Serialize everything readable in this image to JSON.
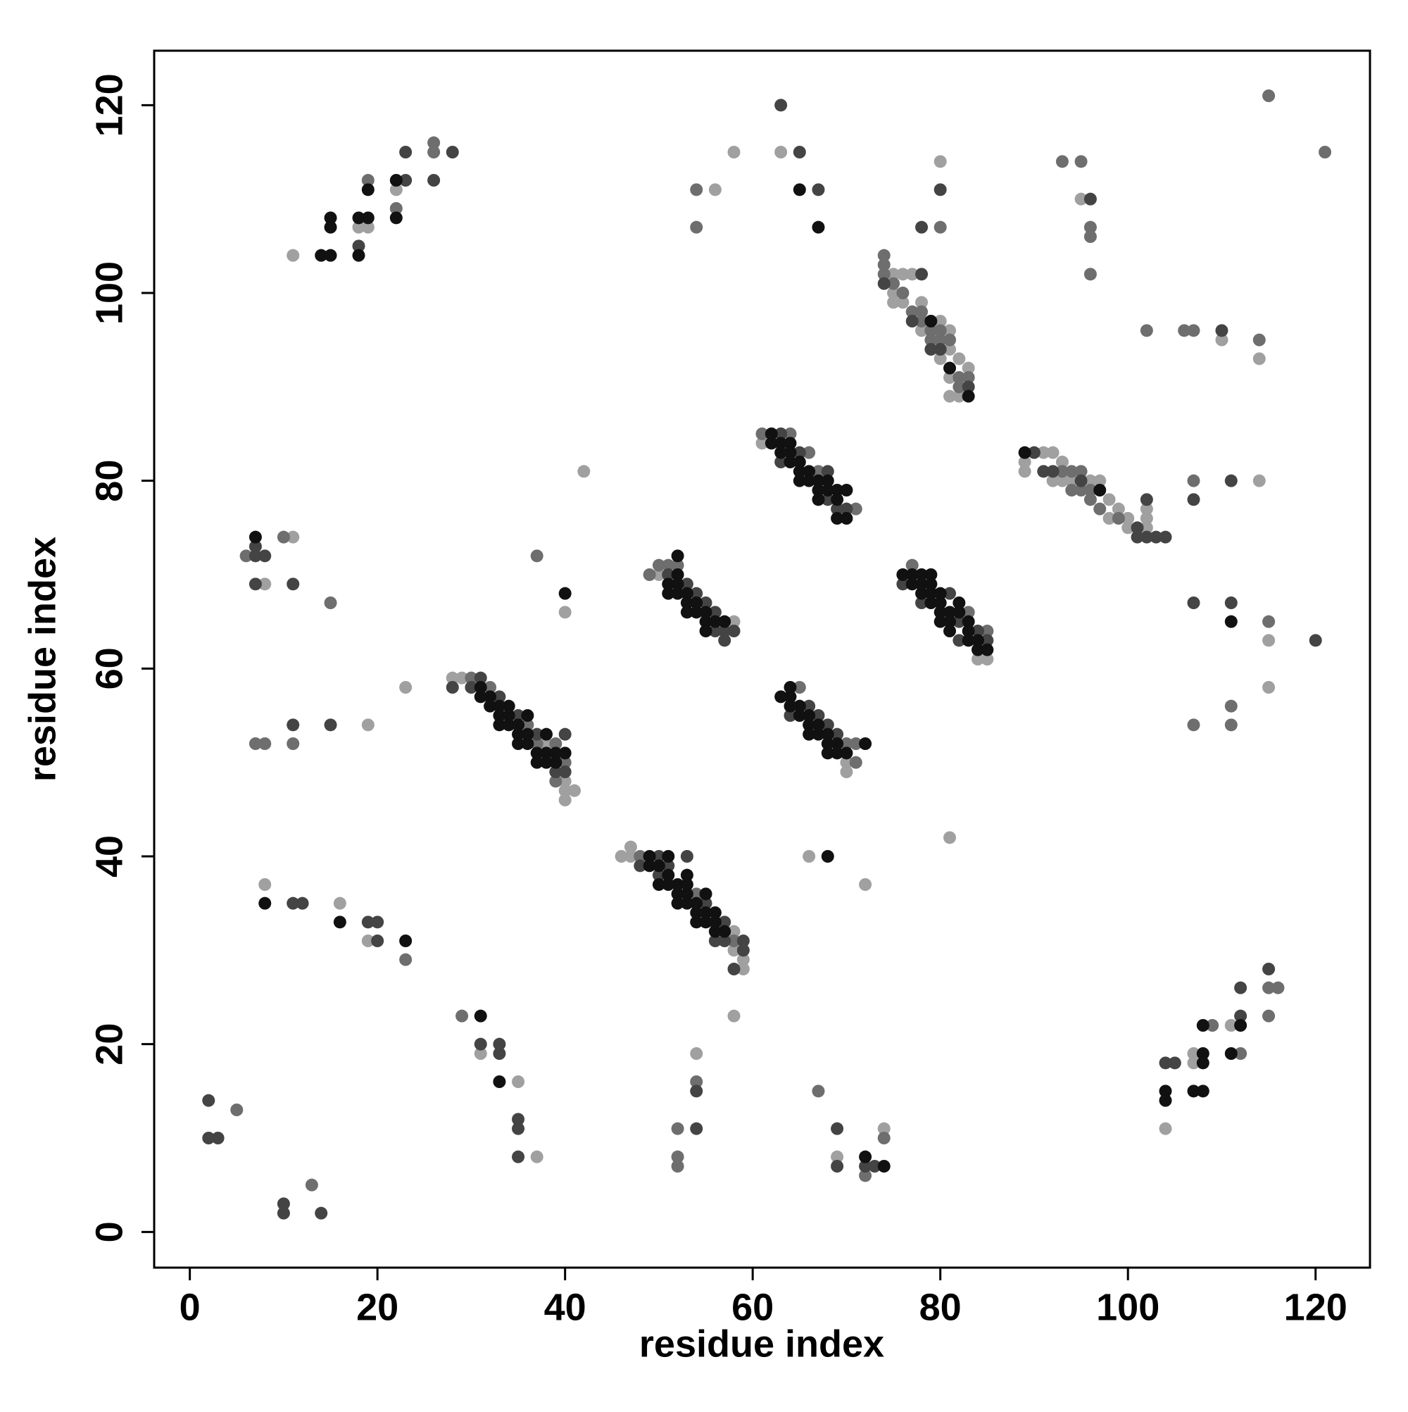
{
  "chart_data": {
    "type": "scatter",
    "xlabel": "residue index",
    "ylabel": "residue index",
    "xlim": [
      -3.8,
      125.8
    ],
    "ylim": [
      -3.8,
      125.8
    ],
    "xticks": [
      0,
      20,
      40,
      60,
      80,
      100,
      120
    ],
    "yticks": [
      0,
      20,
      40,
      60,
      80,
      100,
      120
    ],
    "grid": false,
    "series": [
      {
        "color": "#a0a0a0",
        "x": [
          8,
          16,
          19,
          19,
          23,
          8,
          11,
          11,
          18,
          19,
          22,
          28,
          29,
          38,
          40,
          40,
          40,
          41,
          40,
          42,
          46,
          47,
          47,
          58,
          58,
          59,
          59,
          58,
          50,
          58,
          61,
          70,
          70,
          66,
          72,
          84,
          85,
          81,
          75,
          75,
          75,
          76,
          76,
          77,
          78,
          78,
          80,
          80,
          81,
          81,
          81,
          81,
          82,
          82,
          83,
          89,
          89,
          91,
          92,
          92,
          93,
          93,
          94,
          96,
          97,
          98,
          98,
          99,
          100,
          100,
          102,
          102,
          102,
          56,
          58,
          63,
          80,
          95,
          110,
          114,
          114,
          115,
          115,
          104,
          107,
          107,
          111,
          31,
          35,
          37,
          54,
          69,
          74
        ],
        "values": [
          37,
          35,
          31,
          54,
          58,
          69,
          74,
          104,
          107,
          107,
          111,
          59,
          59,
          52,
          48,
          47,
          46,
          47,
          66,
          81,
          40,
          41,
          40,
          32,
          30,
          29,
          28,
          23,
          70,
          65,
          84,
          50,
          49,
          40,
          37,
          61,
          61,
          42,
          102,
          100,
          99,
          102,
          99,
          102,
          99,
          96,
          97,
          93,
          96,
          94,
          91,
          89,
          93,
          89,
          92,
          82,
          81,
          83,
          83,
          80,
          82,
          80,
          80,
          80,
          80,
          78,
          76,
          77,
          76,
          75,
          77,
          76,
          75,
          111,
          115,
          115,
          114,
          110,
          95,
          93,
          80,
          63,
          58,
          11,
          19,
          18,
          22,
          19,
          16,
          8,
          19,
          8,
          11
        ]
      },
      {
        "color": "#6e6e6e",
        "x": [
          5,
          13,
          23,
          7,
          8,
          11,
          6,
          10,
          15,
          19,
          22,
          26,
          26,
          30,
          32,
          36,
          37,
          39,
          39,
          40,
          37,
          48,
          54,
          58,
          49,
          50,
          51,
          52,
          61,
          64,
          66,
          67,
          71,
          65,
          70,
          71,
          71,
          77,
          83,
          85,
          74,
          74,
          74,
          75,
          76,
          77,
          78,
          78,
          79,
          79,
          80,
          80,
          81,
          82,
          82,
          83,
          93,
          94,
          94,
          95,
          95,
          96,
          96,
          97,
          99,
          54,
          54,
          80,
          93,
          95,
          96,
          96,
          96,
          102,
          106,
          107,
          114,
          115,
          121,
          107,
          115,
          107,
          111,
          111,
          109,
          112,
          115,
          116,
          115,
          29,
          52,
          52,
          52,
          54,
          67,
          72,
          74
        ],
        "values": [
          13,
          5,
          29,
          52,
          52,
          52,
          72,
          74,
          67,
          112,
          109,
          116,
          115,
          59,
          58,
          54,
          52,
          52,
          48,
          50,
          72,
          40,
          36,
          31,
          70,
          71,
          71,
          71,
          85,
          85,
          83,
          81,
          77,
          58,
          52,
          52,
          50,
          71,
          66,
          64,
          104,
          103,
          102,
          101,
          100,
          98,
          98,
          97,
          96,
          95,
          96,
          95,
          95,
          91,
          90,
          91,
          81,
          81,
          79,
          81,
          79,
          79,
          78,
          77,
          76,
          111,
          107,
          107,
          114,
          114,
          107,
          106,
          102,
          96,
          96,
          96,
          95,
          121,
          115,
          80,
          65,
          54,
          56,
          54,
          22,
          19,
          26,
          26,
          23,
          23,
          11,
          8,
          7,
          16,
          15,
          6,
          10
        ]
      },
      {
        "color": "#444444",
        "x": [
          2,
          2,
          3,
          10,
          10,
          14,
          11,
          12,
          19,
          20,
          20,
          11,
          15,
          7,
          7,
          8,
          7,
          11,
          18,
          23,
          23,
          26,
          28,
          28,
          30,
          31,
          33,
          35,
          37,
          39,
          40,
          40,
          48,
          50,
          50,
          51,
          53,
          55,
          56,
          57,
          57,
          58,
          59,
          59,
          51,
          53,
          54,
          55,
          56,
          56,
          57,
          57,
          58,
          63,
          63,
          65,
          68,
          68,
          69,
          70,
          64,
          66,
          67,
          68,
          69,
          76,
          78,
          81,
          82,
          82,
          84,
          85,
          74,
          77,
          78,
          79,
          80,
          83,
          90,
          91,
          92,
          95,
          101,
          101,
          102,
          102,
          103,
          104,
          63,
          65,
          67,
          78,
          80,
          96,
          110,
          107,
          111,
          107,
          111,
          120,
          104,
          105,
          112,
          112,
          115,
          31,
          33,
          33,
          35,
          35,
          35,
          54,
          54,
          69,
          69,
          72,
          73
        ],
        "values": [
          14,
          10,
          10,
          3,
          2,
          2,
          35,
          35,
          33,
          33,
          31,
          54,
          54,
          73,
          72,
          72,
          69,
          69,
          105,
          112,
          115,
          112,
          115,
          58,
          58,
          59,
          57,
          55,
          53,
          49,
          53,
          49,
          39,
          40,
          38,
          39,
          40,
          35,
          31,
          33,
          31,
          28,
          31,
          30,
          70,
          69,
          68,
          67,
          66,
          64,
          64,
          63,
          64,
          85,
          82,
          83,
          81,
          78,
          77,
          77,
          55,
          56,
          55,
          54,
          53,
          69,
          67,
          68,
          65,
          63,
          64,
          63,
          101,
          97,
          102,
          94,
          94,
          90,
          83,
          81,
          81,
          80,
          75,
          74,
          78,
          74,
          74,
          74,
          120,
          115,
          111,
          107,
          111,
          110,
          96,
          78,
          80,
          67,
          67,
          63,
          18,
          18,
          26,
          23,
          28,
          20,
          20,
          19,
          12,
          11,
          8,
          15,
          11,
          11,
          7,
          7,
          7
        ]
      },
      {
        "color": "#111111",
        "x": [
          8,
          16,
          23,
          7,
          14,
          15,
          15,
          15,
          18,
          18,
          19,
          19,
          22,
          22,
          31,
          31,
          32,
          32,
          33,
          33,
          33,
          34,
          34,
          34,
          35,
          35,
          35,
          36,
          36,
          36,
          37,
          37,
          38,
          38,
          38,
          39,
          39,
          40,
          40,
          49,
          49,
          50,
          50,
          51,
          51,
          51,
          52,
          52,
          52,
          53,
          53,
          53,
          53,
          54,
          54,
          54,
          55,
          55,
          55,
          56,
          56,
          56,
          57,
          51,
          51,
          52,
          52,
          52,
          52,
          53,
          53,
          53,
          54,
          54,
          55,
          55,
          55,
          56,
          57,
          62,
          62,
          63,
          63,
          64,
          64,
          64,
          65,
          65,
          65,
          66,
          66,
          67,
          67,
          67,
          68,
          68,
          69,
          69,
          69,
          70,
          70,
          63,
          64,
          64,
          64,
          65,
          65,
          66,
          66,
          66,
          67,
          67,
          68,
          68,
          68,
          69,
          69,
          70,
          72,
          68,
          76,
          77,
          77,
          78,
          78,
          78,
          79,
          79,
          79,
          79,
          80,
          80,
          80,
          80,
          81,
          81,
          81,
          82,
          82,
          83,
          83,
          83,
          84,
          84,
          85,
          79,
          81,
          83,
          89,
          97,
          65,
          67,
          111,
          104,
          104,
          107,
          108,
          108,
          108,
          108,
          111,
          112,
          31,
          33,
          72,
          74
        ],
        "values": [
          35,
          33,
          31,
          74,
          104,
          104,
          108,
          107,
          108,
          104,
          108,
          111,
          112,
          108,
          58,
          57,
          57,
          56,
          56,
          55,
          54,
          56,
          55,
          54,
          54,
          53,
          52,
          55,
          53,
          52,
          51,
          50,
          53,
          51,
          50,
          51,
          50,
          51,
          68,
          40,
          39,
          39,
          37,
          40,
          38,
          37,
          37,
          36,
          35,
          38,
          37,
          36,
          35,
          35,
          34,
          33,
          36,
          34,
          33,
          34,
          33,
          32,
          32,
          69,
          68,
          72,
          70,
          69,
          68,
          68,
          67,
          66,
          67,
          66,
          66,
          65,
          64,
          65,
          65,
          85,
          84,
          84,
          83,
          84,
          83,
          82,
          82,
          81,
          80,
          81,
          80,
          80,
          79,
          78,
          80,
          79,
          79,
          78,
          76,
          79,
          76,
          57,
          58,
          57,
          56,
          56,
          55,
          55,
          54,
          53,
          54,
          53,
          53,
          52,
          51,
          52,
          51,
          51,
          52,
          40,
          70,
          70,
          69,
          70,
          69,
          68,
          70,
          69,
          68,
          67,
          68,
          67,
          66,
          65,
          66,
          65,
          64,
          67,
          66,
          65,
          64,
          63,
          63,
          62,
          62,
          97,
          92,
          89,
          83,
          79,
          111,
          107,
          65,
          15,
          14,
          15,
          15,
          22,
          19,
          18,
          19,
          22,
          23,
          16,
          8,
          7
        ]
      }
    ]
  }
}
